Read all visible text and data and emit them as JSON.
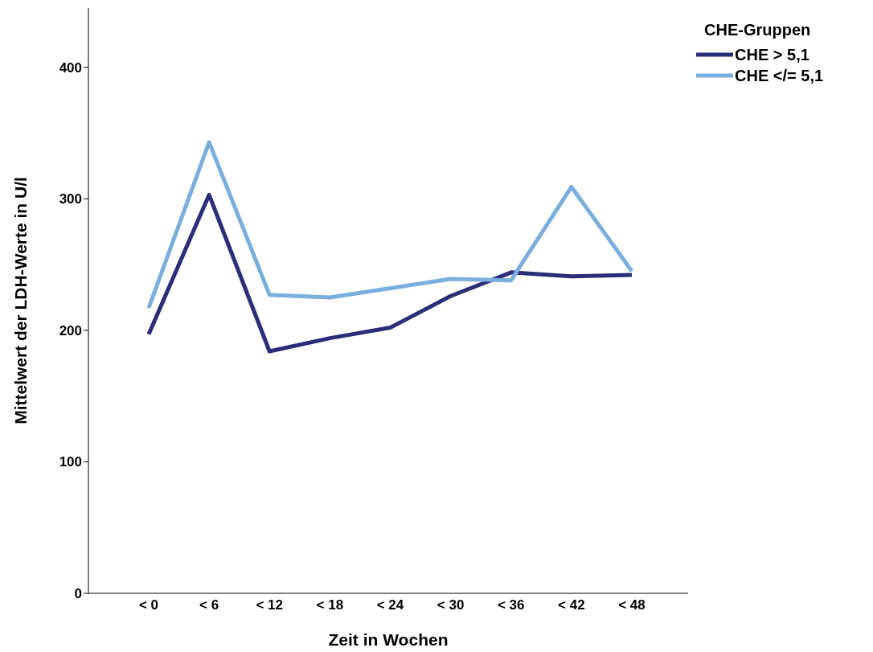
{
  "chart_data": {
    "type": "line",
    "xlabel": "Zeit in Wochen",
    "ylabel": "Mittelwert der LDH-Werte in U/l",
    "legend_title": "CHE-Gruppen",
    "legend": "top right",
    "categories": [
      "< 0",
      "< 6",
      "< 12",
      "< 18",
      "< 24",
      "< 30",
      "< 36",
      "< 42",
      "< 48"
    ],
    "series": [
      {
        "name": "CHE > 5,1",
        "color": "#2b2d79",
        "values": [
          197,
          303,
          184,
          194,
          202,
          226,
          244,
          241,
          242
        ]
      },
      {
        "name": "CHE </= 5,1",
        "color": "#7aaedc",
        "values": [
          217,
          343,
          227,
          225,
          232,
          239,
          238,
          309,
          245
        ]
      }
    ],
    "ylim": [
      0,
      445
    ],
    "yticks": [
      0,
      100,
      200,
      300,
      400
    ],
    "grid": false,
    "marker": "none",
    "line_style": "solid"
  }
}
